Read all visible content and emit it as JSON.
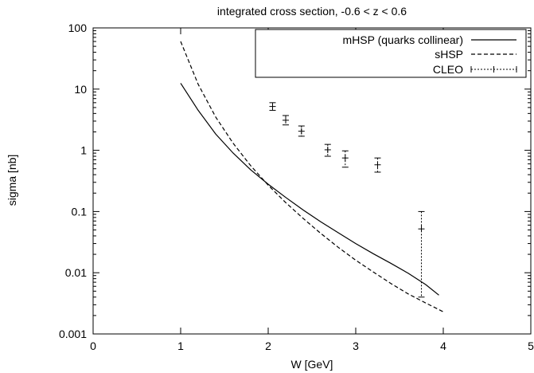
{
  "chart_data": {
    "type": "line",
    "title": "integrated cross section, -0.6 < z < 0.6",
    "xlabel": "W [GeV]",
    "ylabel": "sigma [nb]",
    "xlim": [
      0,
      5
    ],
    "ylim": [
      0.001,
      100
    ],
    "yscale": "log",
    "grid": false,
    "legend_position": "top-right",
    "x_ticks": [
      {
        "value": 0,
        "label": "0"
      },
      {
        "value": 1,
        "label": "1"
      },
      {
        "value": 2,
        "label": "2"
      },
      {
        "value": 3,
        "label": "3"
      },
      {
        "value": 4,
        "label": "4"
      },
      {
        "value": 5,
        "label": "5"
      }
    ],
    "y_ticks": [
      {
        "value": 100,
        "label": "100"
      },
      {
        "value": 10,
        "label": "10"
      },
      {
        "value": 1,
        "label": "1"
      },
      {
        "value": 0.1,
        "label": "0.1"
      },
      {
        "value": 0.01,
        "label": "0.01"
      },
      {
        "value": 0.001,
        "label": "0.001"
      }
    ],
    "series": [
      {
        "name": "mHSP (quarks collinear)",
        "style": "solid",
        "x": [
          1.0,
          1.2,
          1.4,
          1.6,
          1.8,
          2.0,
          2.2,
          2.4,
          2.6,
          2.8,
          3.0,
          3.2,
          3.4,
          3.6,
          3.8,
          3.95
        ],
        "y": [
          12.5,
          4.5,
          1.85,
          0.9,
          0.48,
          0.28,
          0.17,
          0.106,
          0.068,
          0.045,
          0.03,
          0.0205,
          0.0143,
          0.0098,
          0.0064,
          0.0043
        ]
      },
      {
        "name": "sHSP",
        "style": "dashed",
        "x": [
          1.0,
          1.2,
          1.4,
          1.6,
          1.8,
          2.0,
          2.2,
          2.4,
          2.6,
          2.8,
          3.0,
          3.2,
          3.4,
          3.6,
          3.8,
          4.0
        ],
        "y": [
          60,
          12,
          3.5,
          1.3,
          0.56,
          0.27,
          0.14,
          0.077,
          0.044,
          0.026,
          0.016,
          0.0103,
          0.0067,
          0.0045,
          0.0032,
          0.0023
        ]
      },
      {
        "name": "CLEO",
        "style": "points-with-errorbars",
        "points": [
          {
            "x": 2.05,
            "y": 5.2,
            "ylow": 4.5,
            "yhigh": 6.0
          },
          {
            "x": 2.2,
            "y": 3.1,
            "ylow": 2.6,
            "yhigh": 3.7
          },
          {
            "x": 2.38,
            "y": 2.05,
            "ylow": 1.7,
            "yhigh": 2.5
          },
          {
            "x": 2.68,
            "y": 1.02,
            "ylow": 0.8,
            "yhigh": 1.25
          },
          {
            "x": 2.88,
            "y": 0.75,
            "ylow": 0.53,
            "yhigh": 0.98
          },
          {
            "x": 3.25,
            "y": 0.58,
            "ylow": 0.44,
            "yhigh": 0.75
          },
          {
            "x": 3.75,
            "y": 0.052,
            "ylow": 0.004,
            "yhigh": 0.1
          }
        ]
      }
    ]
  }
}
